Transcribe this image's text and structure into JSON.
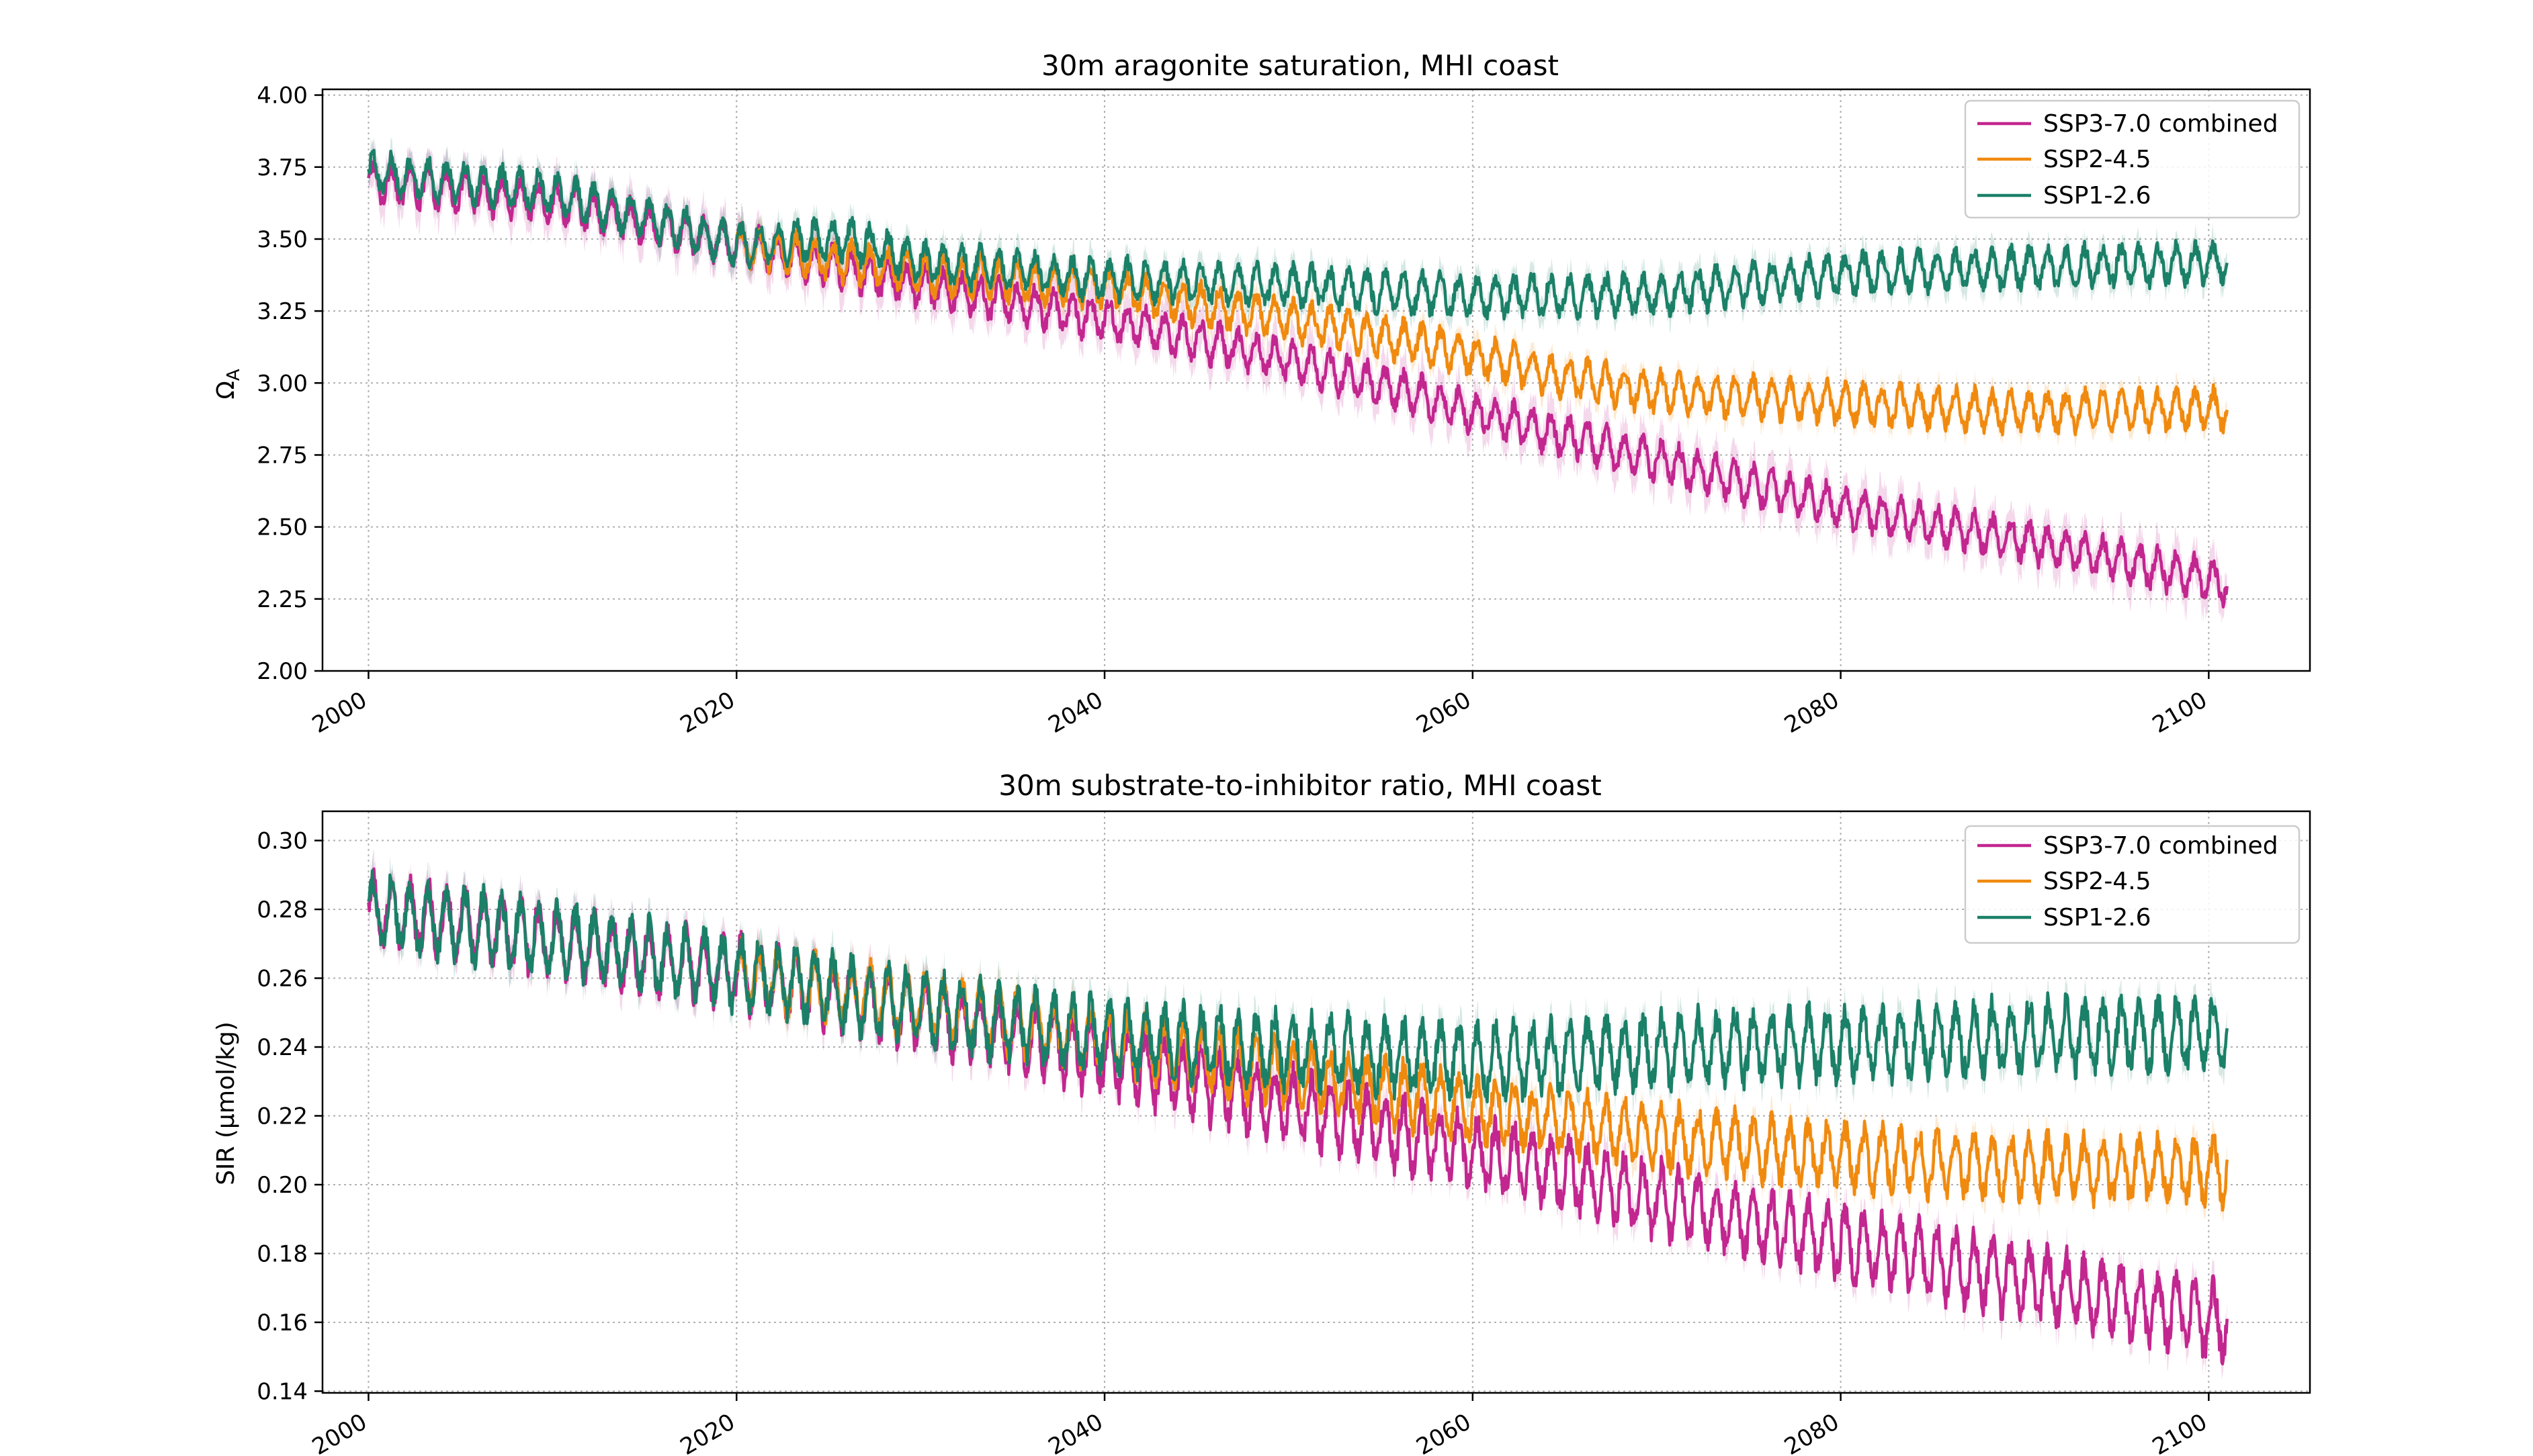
{
  "colors": {
    "ssp370": "#C2268F",
    "ssp245": "#F08A0F",
    "ssp126": "#1B8068"
  },
  "chart_data": [
    {
      "type": "line",
      "title": "30m aragonite saturation, MHI coast",
      "xlabel": "",
      "ylabel": "Ω",
      "ylabel_sub": "A",
      "xlim": [
        1997.5,
        2105.5
      ],
      "ylim": [
        2.0,
        4.02
      ],
      "xticks": [
        "2000",
        "2020",
        "2040",
        "2060",
        "2080",
        "2100"
      ],
      "yticks": [
        "2.00",
        "2.25",
        "2.50",
        "2.75",
        "3.00",
        "3.25",
        "3.50",
        "3.75",
        "4.00"
      ],
      "grid": true,
      "legend_position": "top-right",
      "series": [
        {
          "name": "SSP3-7.0 combined",
          "color_key": "ssp370",
          "x": [
            2000,
            2010,
            2020,
            2030,
            2040,
            2050,
            2060,
            2070,
            2080,
            2090,
            2100,
            2101
          ],
          "values": [
            3.7,
            3.63,
            3.48,
            3.34,
            3.22,
            3.08,
            2.9,
            2.73,
            2.57,
            2.45,
            2.32,
            2.3
          ],
          "seasonal_amplitude": 0.06,
          "spread": 0.12
        },
        {
          "name": "SSP2-4.5",
          "color_key": "ssp245",
          "x": [
            2020,
            2030,
            2040,
            2050,
            2060,
            2065,
            2070,
            2080,
            2090,
            2101
          ],
          "values": [
            3.48,
            3.38,
            3.33,
            3.22,
            3.1,
            3.02,
            2.97,
            2.93,
            2.9,
            2.91
          ],
          "seasonal_amplitude": 0.06,
          "spread": 0.07
        },
        {
          "name": "SSP1-2.6",
          "color_key": "ssp126",
          "x": [
            2000,
            2010,
            2020,
            2026,
            2030,
            2040,
            2050,
            2060,
            2070,
            2080,
            2090,
            2101
          ],
          "values": [
            3.73,
            3.66,
            3.48,
            3.5,
            3.42,
            3.36,
            3.34,
            3.3,
            3.31,
            3.38,
            3.4,
            3.42
          ],
          "seasonal_amplitude": 0.06,
          "spread": 0.08
        }
      ]
    },
    {
      "type": "line",
      "title": "30m substrate-to-inhibitor ratio, MHI coast",
      "xlabel": "",
      "ylabel": "SIR (μmol/kg)",
      "ylabel_sub": "",
      "xlim": [
        1997.5,
        2105.5
      ],
      "ylim": [
        0.1395,
        0.3085
      ],
      "xticks": [
        "2000",
        "2020",
        "2040",
        "2060",
        "2080",
        "2100"
      ],
      "yticks": [
        "0.14",
        "0.16",
        "0.18",
        "0.20",
        "0.22",
        "0.24",
        "0.26",
        "0.28",
        "0.30"
      ],
      "grid": true,
      "legend_position": "top-right",
      "series": [
        {
          "name": "SSP3-7.0 combined",
          "color_key": "ssp370",
          "x": [
            2000,
            2010,
            2020,
            2030,
            2040,
            2050,
            2060,
            2070,
            2080,
            2090,
            2101
          ],
          "values": [
            0.28,
            0.271,
            0.261,
            0.25,
            0.237,
            0.223,
            0.21,
            0.196,
            0.183,
            0.172,
            0.16
          ],
          "seasonal_amplitude": 0.009,
          "spread": 0.008
        },
        {
          "name": "SSP2-4.5",
          "color_key": "ssp245",
          "x": [
            2020,
            2030,
            2040,
            2050,
            2060,
            2070,
            2080,
            2090,
            2101
          ],
          "values": [
            0.261,
            0.252,
            0.242,
            0.232,
            0.222,
            0.214,
            0.208,
            0.205,
            0.204
          ],
          "seasonal_amplitude": 0.008,
          "spread": 0.007
        },
        {
          "name": "SSP1-2.6",
          "color_key": "ssp126",
          "x": [
            2000,
            2010,
            2020,
            2030,
            2040,
            2050,
            2060,
            2070,
            2080,
            2090,
            2101
          ],
          "values": [
            0.28,
            0.271,
            0.262,
            0.251,
            0.243,
            0.239,
            0.236,
            0.239,
            0.241,
            0.243,
            0.244
          ],
          "seasonal_amplitude": 0.009,
          "spread": 0.008
        }
      ]
    }
  ]
}
